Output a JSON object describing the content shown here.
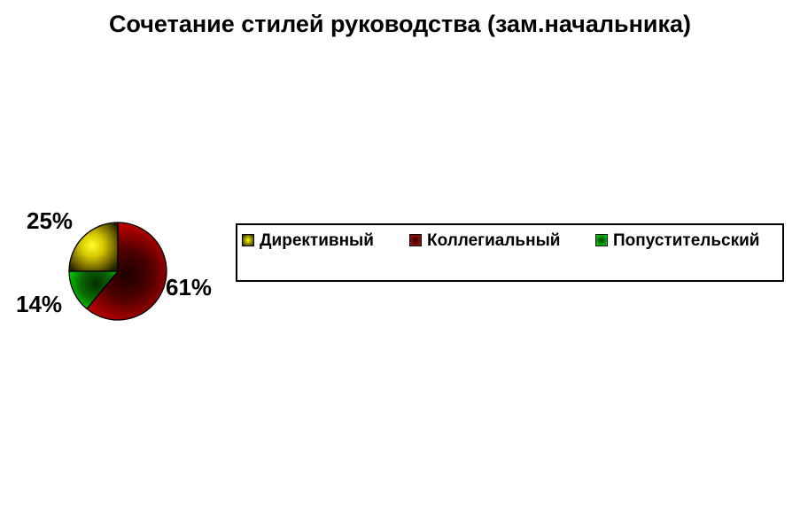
{
  "chart_data": {
    "type": "pie",
    "title": "Сочетание стилей руководства (зам.начальника)",
    "direction": "clockwise",
    "start_angle_deg": 0,
    "legend_position": "right-box",
    "slices": [
      {
        "name": "kollegialny",
        "label": "Коллегиальный",
        "value": 61,
        "display": "61%",
        "color": "#c40000",
        "gradient_stops": [
          [
            0,
            "#1c0000"
          ],
          [
            0.45,
            "#4d0000"
          ],
          [
            0.78,
            "#960000"
          ],
          [
            1,
            "#c40000"
          ]
        ]
      },
      {
        "name": "popustitelsky",
        "label": "Попустительский",
        "value": 14,
        "display": "14%",
        "color": "#00cc00",
        "gradient_stops": [
          [
            0,
            "#062c00"
          ],
          [
            0.55,
            "#0a6b00"
          ],
          [
            1,
            "#00d000"
          ]
        ]
      },
      {
        "name": "direktivny",
        "label": "Директивный",
        "value": 25,
        "display": "25%",
        "color": "#ffff00",
        "gradient_stops": [
          [
            0,
            "#ffff2e"
          ],
          [
            0.35,
            "#d8c800"
          ],
          [
            0.7,
            "#7a6e00"
          ],
          [
            1,
            "#201c00"
          ]
        ]
      }
    ]
  },
  "legend": {
    "items": [
      {
        "label": "Директивный",
        "marker": {
          "bright": "#ffff00",
          "dark": "#2a2600",
          "style": "bright-center"
        }
      },
      {
        "label": "Коллегиальный",
        "marker": {
          "bright": "#9b1212",
          "dark": "#330000",
          "style": "dark-center"
        }
      },
      {
        "label": "Попустительский",
        "marker": {
          "bright": "#00d000",
          "dark": "#063800",
          "style": "dark-center"
        }
      }
    ]
  }
}
